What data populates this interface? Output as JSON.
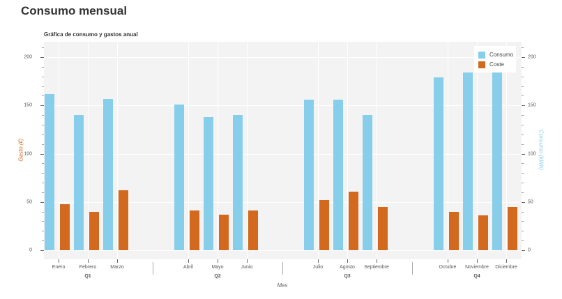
{
  "page": {
    "title": "Consumo mensual"
  },
  "chart": {
    "title": "Gráfica de consumo y gastos anual",
    "left_axis_label": "Gasto (€)",
    "right_axis_label": "Consumo (kWh)",
    "x_axis_label": "Mes",
    "left_ticks": [
      "0",
      "50",
      "100",
      "150",
      "200"
    ],
    "right_ticks": [
      "0",
      "50",
      "100",
      "150",
      "200"
    ],
    "legend": {
      "consumo": "Consumo",
      "coste": "Coste"
    },
    "months": [
      "Enero",
      "Febrero",
      "Marzo",
      "Abril",
      "Mayo",
      "Junio",
      "Julio",
      "Agosto",
      "Septiembre",
      "Octubre",
      "Noviembre",
      "Diciembre"
    ],
    "quarters": [
      "Q1",
      "Q2",
      "Q3",
      "Q4"
    ]
  },
  "colors": {
    "consumo": "#87ceeb",
    "coste": "#d2691e",
    "plot_bg": "#f3f3f3"
  },
  "chart_data": {
    "type": "bar",
    "title": "Gráfica de consumo y gastos anual",
    "xlabel": "Mes",
    "ylabel": "Gasto (€)",
    "ylabel_right": "Consumo (kWh)",
    "ylim": [
      -9,
      216
    ],
    "categories": [
      "Enero",
      "Febrero",
      "Marzo",
      "Abril",
      "Mayo",
      "Junio",
      "Julio",
      "Agosto",
      "Septiembre",
      "Octubre",
      "Noviembre",
      "Diciembre"
    ],
    "groups": [
      {
        "name": "Q1",
        "categories": [
          "Enero",
          "Febrero",
          "Marzo"
        ]
      },
      {
        "name": "Q2",
        "categories": [
          "Abril",
          "Mayo",
          "Junio"
        ]
      },
      {
        "name": "Q3",
        "categories": [
          "Julio",
          "Agosto",
          "Septiembre"
        ]
      },
      {
        "name": "Q4",
        "categories": [
          "Octubre",
          "Noviembre",
          "Diciembre"
        ]
      }
    ],
    "series": [
      {
        "name": "Consumo",
        "axis": "right",
        "color": "#87ceeb",
        "values": [
          162,
          140,
          157,
          151,
          138,
          140,
          156,
          156,
          140,
          179,
          184,
          184
        ]
      },
      {
        "name": "Coste",
        "axis": "left",
        "color": "#d2691e",
        "values": [
          48,
          40,
          62,
          41,
          37,
          41,
          52,
          61,
          45,
          40,
          36,
          45
        ]
      }
    ],
    "legend_position": "top-right",
    "grid": true
  }
}
